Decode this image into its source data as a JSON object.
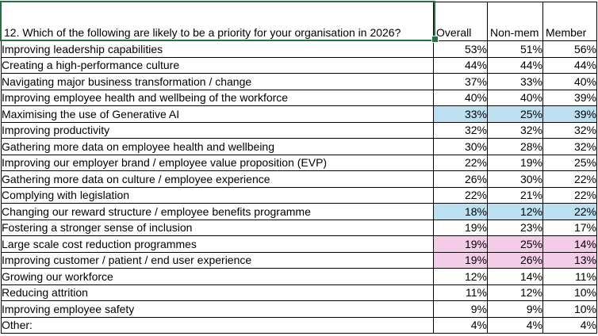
{
  "sheet": {
    "question": "12. Which of the following are likely to be a priority for your organisation in 2026?",
    "columns": [
      "Overall",
      "Non-mem",
      "Member"
    ],
    "rows": [
      {
        "label": "Improving leadership capabilities",
        "values": [
          "53%",
          "51%",
          "56%"
        ],
        "highlight": "none"
      },
      {
        "label": "Creating a high-performance culture",
        "values": [
          "44%",
          "44%",
          "44%"
        ],
        "highlight": "none"
      },
      {
        "label": "Navigating major business transformation / change",
        "values": [
          "37%",
          "33%",
          "40%"
        ],
        "highlight": "none"
      },
      {
        "label": "Improving employee health and wellbeing of the workforce",
        "values": [
          "40%",
          "40%",
          "39%"
        ],
        "highlight": "none"
      },
      {
        "label": "Maximising the use of Generative AI",
        "values": [
          "33%",
          "25%",
          "39%"
        ],
        "highlight": "blue"
      },
      {
        "label": "Improving productivity",
        "values": [
          "32%",
          "32%",
          "32%"
        ],
        "highlight": "none"
      },
      {
        "label": "Gathering more data on employee health and wellbeing",
        "values": [
          "30%",
          "28%",
          "32%"
        ],
        "highlight": "none"
      },
      {
        "label": "Improving our employer brand / employee value proposition (EVP)",
        "values": [
          "22%",
          "19%",
          "25%"
        ],
        "highlight": "none"
      },
      {
        "label": "Gathering more data on culture / employee experience",
        "values": [
          "26%",
          "30%",
          "22%"
        ],
        "highlight": "none"
      },
      {
        "label": "Complying with legislation",
        "values": [
          "22%",
          "21%",
          "22%"
        ],
        "highlight": "none"
      },
      {
        "label": "Changing our reward structure / employee benefits programme",
        "values": [
          "18%",
          "12%",
          "22%"
        ],
        "highlight": "blue"
      },
      {
        "label": "Fostering a stronger sense of inclusion",
        "values": [
          "19%",
          "23%",
          "17%"
        ],
        "highlight": "none"
      },
      {
        "label": "Large scale cost reduction programmes",
        "values": [
          "19%",
          "25%",
          "14%"
        ],
        "highlight": "pink"
      },
      {
        "label": "Improving customer / patient / end user experience",
        "values": [
          "19%",
          "26%",
          "13%"
        ],
        "highlight": "pink"
      },
      {
        "label": "Growing our workforce",
        "values": [
          "12%",
          "14%",
          "11%"
        ],
        "highlight": "none"
      },
      {
        "label": "Reducing attrition",
        "values": [
          "11%",
          "12%",
          "10%"
        ],
        "highlight": "none"
      },
      {
        "label": "Improving employee safety",
        "values": [
          "9%",
          "9%",
          "10%"
        ],
        "highlight": "none"
      },
      {
        "label": "Other:",
        "values": [
          "4%",
          "4%",
          "4%"
        ],
        "highlight": "none"
      }
    ],
    "colors": {
      "highlight_blue": "#BDE0F0",
      "highlight_pink": "#F3CDE8",
      "selection_green": "#217346",
      "grid_border": "#000000"
    }
  }
}
